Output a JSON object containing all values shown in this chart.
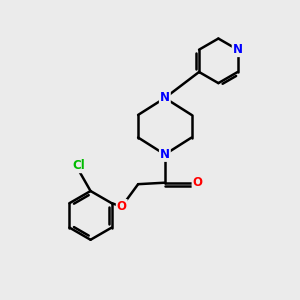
{
  "bg_color": "#ebebeb",
  "bond_color": "#000000",
  "bond_width": 1.8,
  "atom_colors": {
    "N": "#0000ff",
    "O": "#ff0000",
    "Cl": "#00bb00",
    "C": "#000000"
  },
  "font_size": 8.5,
  "fig_size": [
    3.0,
    3.0
  ],
  "dpi": 100
}
